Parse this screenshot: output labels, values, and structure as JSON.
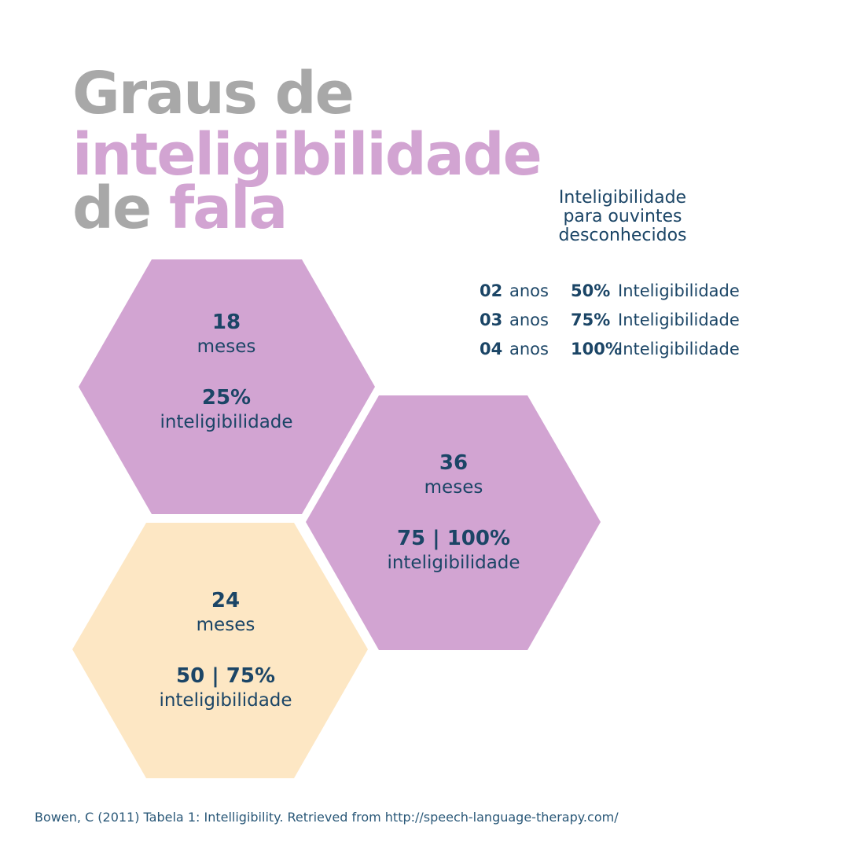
{
  "title": {
    "line1": "Graus de",
    "line2": "inteligibilidade",
    "line3_a": "de",
    "line3_b": "fala"
  },
  "colors": {
    "gray": "#a8a8a8",
    "pink": "#d2a4d2",
    "cream": "#fde7c4",
    "navy": "#1b4566"
  },
  "hexagons": [
    {
      "age": "18",
      "unit": "meses",
      "pct": "25%",
      "label": "inteligibilidade",
      "color": "pink"
    },
    {
      "age": "36",
      "unit": "meses",
      "pct": "75 | 100%",
      "label": "inteligibilidade",
      "color": "pink"
    },
    {
      "age": "24",
      "unit": "meses",
      "pct": "50 | 75%",
      "label": "inteligibilidade",
      "color": "cream"
    }
  ],
  "legend": {
    "title": "Inteligibilidade para ouvintes desconhecidos",
    "rows": [
      {
        "num": "02",
        "anos": "anos",
        "pct": "50%",
        "label": "Inteligibilidade"
      },
      {
        "num": "03",
        "anos": "anos",
        "pct": "75%",
        "label": "Inteligibilidade"
      },
      {
        "num": "04",
        "anos": "anos",
        "pct": "100%",
        "label": "Inteligibilidade"
      }
    ]
  },
  "citation": "Bowen, C (2011) Tabela 1: Intelligibility. Retrieved from http://speech-language-therapy.com/"
}
